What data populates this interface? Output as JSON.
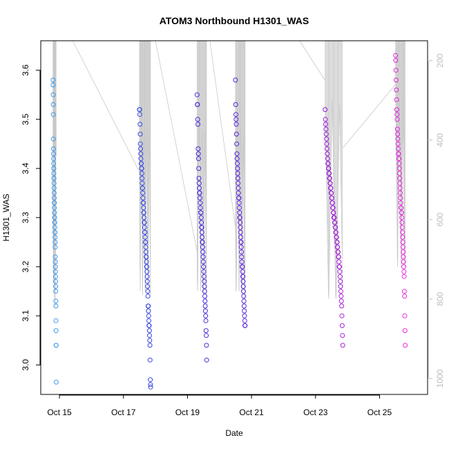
{
  "chart_data": {
    "type": "scatter",
    "title": "ATOM3 Northbound H1301_WAS",
    "xlabel": "Date",
    "ylabel": "H1301_WAS",
    "xlim": [
      "2016-10-14T10:00",
      "2016-10-26T12:00"
    ],
    "ylim": [
      2.94,
      3.66
    ],
    "x_ticks": [
      "Oct 15",
      "Oct 17",
      "Oct 19",
      "Oct 21",
      "Oct 23",
      "Oct 25"
    ],
    "x_tick_dates": [
      "2016-10-15",
      "2016-10-17",
      "2016-10-19",
      "2016-10-21",
      "2016-10-23",
      "2016-10-25"
    ],
    "y_ticks": [
      3.0,
      3.1,
      3.2,
      3.3,
      3.4,
      3.5,
      3.6
    ],
    "secondary_axis": {
      "label": "",
      "side": "right",
      "ticks": [
        200,
        400,
        600,
        800,
        1000
      ],
      "lim": [
        1040,
        150
      ],
      "reversed": true,
      "description": "pressure (grey flight track)"
    },
    "grid": false,
    "legend": "none",
    "color_gradient": [
      "#3fa6ef",
      "#3333dd",
      "#7a1bd6",
      "#ff2bd8"
    ],
    "flights": [
      {
        "time_start": "2016-10-14T19:12",
        "time_end": "2016-10-14T21:36",
        "h1301": [
          3.58,
          3.57,
          3.55,
          3.53,
          3.51,
          3.46,
          3.44,
          3.43,
          3.42,
          3.41,
          3.4,
          3.4,
          3.39,
          3.38,
          3.38,
          3.37,
          3.36,
          3.35,
          3.34,
          3.33,
          3.33,
          3.32,
          3.31,
          3.3,
          3.3,
          3.29,
          3.29,
          3.28,
          3.27,
          3.27,
          3.26,
          3.25,
          3.24,
          3.22,
          3.21,
          3.2,
          3.19,
          3.18,
          3.17,
          3.16,
          3.15,
          3.13,
          3.12,
          3.09,
          3.07,
          3.04,
          3.04,
          2.965
        ],
        "pressure": [
          480,
          560,
          620,
          680,
          760,
          720,
          640,
          520,
          450,
          300,
          280,
          350,
          430,
          510,
          590,
          660,
          700,
          740,
          780,
          800,
          760,
          690,
          600,
          520,
          440,
          380,
          330,
          360,
          420,
          500,
          580,
          650,
          720,
          780,
          820,
          790,
          740,
          680,
          610,
          540,
          470,
          400,
          340,
          300,
          280,
          320,
          380,
          440
        ]
      },
      {
        "time_start": "2016-10-17T12:00",
        "time_end": "2016-10-17T20:24",
        "h1301": [
          3.52,
          3.52,
          3.51,
          3.49,
          3.47,
          3.45,
          3.44,
          3.43,
          3.42,
          3.41,
          3.41,
          3.4,
          3.4,
          3.39,
          3.38,
          3.37,
          3.36,
          3.36,
          3.35,
          3.34,
          3.33,
          3.33,
          3.32,
          3.31,
          3.31,
          3.3,
          3.29,
          3.29,
          3.28,
          3.27,
          3.27,
          3.26,
          3.25,
          3.25,
          3.24,
          3.23,
          3.22,
          3.22,
          3.21,
          3.2,
          3.2,
          3.19,
          3.18,
          3.17,
          3.16,
          3.15,
          3.14,
          3.12,
          3.12,
          3.11,
          3.1,
          3.09,
          3.08,
          3.08,
          3.07,
          3.06,
          3.05,
          3.04,
          3.01,
          2.97,
          2.96,
          2.955
        ],
        "pressure": [
          500,
          560,
          650,
          720,
          780,
          740,
          660,
          580,
          500,
          430,
          380,
          420,
          500,
          580,
          640,
          700,
          760,
          790,
          750,
          680,
          600,
          530,
          460,
          400,
          350,
          390,
          460,
          540,
          610,
          680,
          740,
          780,
          760,
          700,
          630,
          560,
          490,
          430,
          380,
          360,
          410,
          480,
          560,
          630,
          700,
          760,
          790,
          770,
          720,
          650,
          580,
          510,
          450,
          400,
          370,
          420,
          500,
          580,
          650,
          720,
          770,
          790
        ]
      },
      {
        "time_start": "2016-10-19T07:12",
        "time_end": "2016-10-19T14:24",
        "h1301": [
          3.55,
          3.53,
          3.53,
          3.5,
          3.49,
          3.44,
          3.43,
          3.42,
          3.4,
          3.38,
          3.37,
          3.36,
          3.35,
          3.35,
          3.34,
          3.33,
          3.32,
          3.31,
          3.31,
          3.3,
          3.29,
          3.28,
          3.28,
          3.27,
          3.26,
          3.25,
          3.25,
          3.24,
          3.23,
          3.22,
          3.21,
          3.2,
          3.19,
          3.18,
          3.17,
          3.16,
          3.15,
          3.14,
          3.13,
          3.12,
          3.11,
          3.1,
          3.09,
          3.07,
          3.06,
          3.04,
          3.01
        ],
        "pressure": [
          700,
          740,
          780,
          760,
          700,
          630,
          560,
          490,
          430,
          380,
          350,
          400,
          470,
          540,
          610,
          680,
          740,
          780,
          750,
          690,
          620,
          550,
          480,
          420,
          370,
          410,
          480,
          560,
          630,
          700,
          760,
          790,
          760,
          700,
          630,
          560,
          490,
          430,
          380,
          420,
          500,
          580,
          650,
          720,
          770,
          800,
          780
        ]
      },
      {
        "time_start": "2016-10-20T12:00",
        "time_end": "2016-10-20T19:12",
        "h1301": [
          3.58,
          3.53,
          3.51,
          3.5,
          3.49,
          3.47,
          3.45,
          3.43,
          3.42,
          3.41,
          3.4,
          3.39,
          3.38,
          3.37,
          3.36,
          3.35,
          3.34,
          3.34,
          3.33,
          3.32,
          3.31,
          3.3,
          3.3,
          3.29,
          3.28,
          3.27,
          3.26,
          3.25,
          3.25,
          3.24,
          3.23,
          3.22,
          3.21,
          3.2,
          3.2,
          3.19,
          3.18,
          3.18,
          3.17,
          3.16,
          3.15,
          3.14,
          3.13,
          3.12,
          3.11,
          3.1,
          3.09,
          3.08,
          3.08
        ],
        "pressure": [
          620,
          680,
          740,
          780,
          760,
          700,
          630,
          560,
          490,
          430,
          380,
          350,
          400,
          470,
          540,
          610,
          680,
          740,
          780,
          750,
          690,
          620,
          550,
          480,
          420,
          370,
          410,
          480,
          560,
          630,
          700,
          760,
          790,
          760,
          700,
          630,
          560,
          490,
          430,
          380,
          420,
          500,
          580,
          650,
          720,
          770,
          800,
          780,
          740
        ]
      },
      {
        "time_start": "2016-10-23T07:12",
        "time_end": "2016-10-23T20:24",
        "h1301": [
          3.52,
          3.5,
          3.49,
          3.48,
          3.47,
          3.46,
          3.45,
          3.44,
          3.43,
          3.42,
          3.41,
          3.41,
          3.4,
          3.4,
          3.39,
          3.39,
          3.38,
          3.38,
          3.37,
          3.37,
          3.36,
          3.36,
          3.35,
          3.35,
          3.34,
          3.34,
          3.33,
          3.33,
          3.32,
          3.32,
          3.31,
          3.31,
          3.3,
          3.3,
          3.3,
          3.29,
          3.29,
          3.28,
          3.28,
          3.27,
          3.27,
          3.26,
          3.26,
          3.25,
          3.25,
          3.24,
          3.24,
          3.23,
          3.23,
          3.22,
          3.22,
          3.21,
          3.2,
          3.2,
          3.19,
          3.18,
          3.17,
          3.16,
          3.15,
          3.14,
          3.13,
          3.12,
          3.1,
          3.08,
          3.06,
          3.04
        ],
        "pressure": [
          300,
          340,
          380,
          420,
          460,
          500,
          540,
          580,
          620,
          660,
          700,
          740,
          780,
          800,
          780,
          740,
          700,
          660,
          620,
          580,
          540,
          500,
          460,
          420,
          380,
          340,
          300,
          320,
          360,
          400,
          440,
          480,
          520,
          560,
          600,
          640,
          680,
          720,
          760,
          790,
          800,
          780,
          750,
          710,
          670,
          630,
          590,
          550,
          510,
          470,
          430,
          390,
          350,
          310,
          330,
          370,
          410,
          450,
          490,
          530,
          570,
          610,
          650,
          690,
          730,
          770
        ]
      },
      {
        "time_start": "2016-10-25T12:00",
        "time_end": "2016-10-25T19:12",
        "h1301": [
          3.63,
          3.62,
          3.6,
          3.58,
          3.56,
          3.54,
          3.52,
          3.51,
          3.5,
          3.48,
          3.47,
          3.46,
          3.45,
          3.44,
          3.43,
          3.43,
          3.42,
          3.42,
          3.41,
          3.4,
          3.39,
          3.38,
          3.37,
          3.36,
          3.35,
          3.34,
          3.33,
          3.32,
          3.32,
          3.31,
          3.31,
          3.3,
          3.29,
          3.28,
          3.27,
          3.26,
          3.25,
          3.24,
          3.23,
          3.22,
          3.21,
          3.2,
          3.19,
          3.18,
          3.15,
          3.14,
          3.1,
          3.07,
          3.04
        ],
        "pressure": [
          260,
          300,
          350,
          400,
          450,
          500,
          550,
          600,
          650,
          700,
          720,
          680,
          630,
          580,
          530,
          480,
          430,
          380,
          330,
          300,
          340,
          390,
          440,
          490,
          540,
          590,
          640,
          690,
          720,
          700,
          660,
          610,
          560,
          510,
          460,
          410,
          360,
          320,
          350,
          400,
          450,
          500,
          550,
          600,
          650,
          700,
          720,
          690,
          650
        ]
      }
    ],
    "transit_tracks": [
      {
        "from": [
          "2016-10-15T10:00",
          150
        ],
        "to": [
          "2016-10-17T12:00",
          480
        ]
      },
      {
        "from": [
          "2016-10-18T00:00",
          150
        ],
        "to": [
          "2016-10-19T07:12",
          680
        ]
      },
      {
        "from": [
          "2016-10-19T16:48",
          150
        ],
        "to": [
          "2016-10-20T12:00",
          620
        ]
      },
      {
        "from": [
          "2016-10-22T12:00",
          150
        ],
        "to": [
          "2016-10-23T07:12",
          250
        ]
      },
      {
        "from": [
          "2016-10-23T20:24",
          420
        ],
        "to": [
          "2016-10-25T12:00",
          260
        ]
      }
    ]
  }
}
